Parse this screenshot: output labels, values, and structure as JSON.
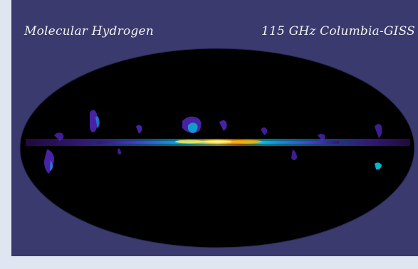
{
  "image": {
    "title_left": "Molecular Hydrogen",
    "title_right": "115 GHz  Columbia-GISS"
  },
  "colors": {
    "background": "#3a3a6e",
    "page": "#dfe6f1",
    "sky": "#000000"
  }
}
